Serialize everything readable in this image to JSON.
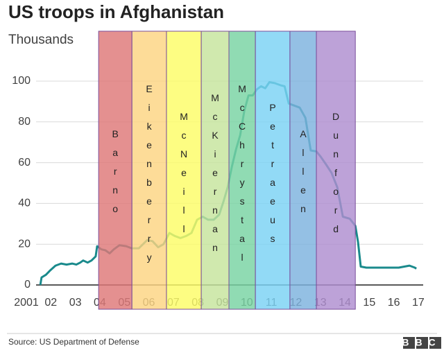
{
  "chart_data": {
    "type": "line",
    "title": "US troops in Afghanistan",
    "subtitle": "Thousands",
    "source": "Source: US Department of Defense",
    "logo": "BBC",
    "color": "#1a8a8c",
    "grid": true,
    "ylim": [
      0,
      100
    ],
    "yticks": [
      0,
      20,
      40,
      60,
      80,
      100
    ],
    "xlim": [
      2001,
      2017.2
    ],
    "xticks": [
      {
        "value": 2001,
        "label": "2001"
      },
      {
        "value": 2002,
        "label": "02"
      },
      {
        "value": 2003,
        "label": "03"
      },
      {
        "value": 2004,
        "label": "04"
      },
      {
        "value": 2005,
        "label": "05"
      },
      {
        "value": 2006,
        "label": "06"
      },
      {
        "value": 2007,
        "label": "07"
      },
      {
        "value": 2008,
        "label": "08"
      },
      {
        "value": 2009,
        "label": "09"
      },
      {
        "value": 2010,
        "label": "10"
      },
      {
        "value": 2011,
        "label": "11"
      },
      {
        "value": 2012,
        "label": "12"
      },
      {
        "value": 2013,
        "label": "13"
      },
      {
        "value": 2014,
        "label": "14"
      },
      {
        "value": 2015,
        "label": "15"
      },
      {
        "value": 2016,
        "label": "16"
      },
      {
        "value": 2017,
        "label": "17"
      }
    ],
    "bands": [
      {
        "label": "Barno",
        "start": 2003.95,
        "end": 2005.31,
        "color": "#de7777"
      },
      {
        "label": "Eikenberry",
        "start": 2005.31,
        "end": 2006.72,
        "color": "#fdd481"
      },
      {
        "label": "McNeill",
        "start": 2006.72,
        "end": 2008.14,
        "color": "#fcfc66"
      },
      {
        "label": "McKiernan",
        "start": 2008.14,
        "end": 2009.27,
        "color": "#c6e49c"
      },
      {
        "label": "McChrystal",
        "start": 2009.27,
        "end": 2010.35,
        "color": "#77d3a2"
      },
      {
        "label": "Petraeus",
        "start": 2010.35,
        "end": 2011.76,
        "color": "#7ad2f4"
      },
      {
        "label": "Allen",
        "start": 2011.76,
        "end": 2012.84,
        "color": "#7cb2de"
      },
      {
        "label": "Dunford",
        "start": 2012.84,
        "end": 2014.43,
        "color": "#ae8dcf"
      }
    ],
    "x": [
      2001.57,
      2001.62,
      2001.8,
      2001.96,
      2002.19,
      2002.42,
      2002.64,
      2002.87,
      2003.04,
      2003.2,
      2003.32,
      2003.5,
      2003.66,
      2003.83,
      2003.89,
      2004.06,
      2004.23,
      2004.4,
      2004.57,
      2004.8,
      2005.08,
      2005.3,
      2005.59,
      2005.76,
      2005.93,
      2006.15,
      2006.38,
      2006.6,
      2006.84,
      2007.06,
      2007.29,
      2007.52,
      2007.74,
      2007.97,
      2008.2,
      2008.42,
      2008.65,
      2008.87,
      2009.05,
      2009.22,
      2009.39,
      2009.56,
      2009.73,
      2009.9,
      2010.07,
      2010.24,
      2010.41,
      2010.58,
      2010.75,
      2010.92,
      2011.14,
      2011.37,
      2011.54,
      2011.71,
      2011.94,
      2012.16,
      2012.39,
      2012.61,
      2012.84,
      2013.01,
      2013.24,
      2013.46,
      2013.69,
      2013.92,
      2014.2,
      2014.43,
      2014.54,
      2014.65,
      2014.88,
      2015.79,
      2016.2,
      2016.64,
      2016.86,
      2016.92
    ],
    "values": [
      0,
      3.7,
      5,
      7,
      9.5,
      10.5,
      10,
      10.5,
      10,
      11,
      12,
      11,
      12,
      14,
      19,
      17.5,
      17,
      15.5,
      17.5,
      19.5,
      19,
      18,
      18,
      20,
      22,
      21.5,
      18.5,
      20,
      25.5,
      24,
      23,
      24,
      25.5,
      32,
      33.5,
      32,
      32,
      34.5,
      41,
      48,
      58,
      66.5,
      73.5,
      85.5,
      93,
      93,
      96,
      97.5,
      96.5,
      99.5,
      99,
      98,
      97.5,
      89,
      88,
      87,
      82,
      66,
      65.5,
      63,
      59,
      55,
      48,
      33.5,
      32.5,
      29,
      21,
      9,
      8.5,
      8.5,
      8.5,
      9.5,
      8.5,
      8
    ]
  }
}
